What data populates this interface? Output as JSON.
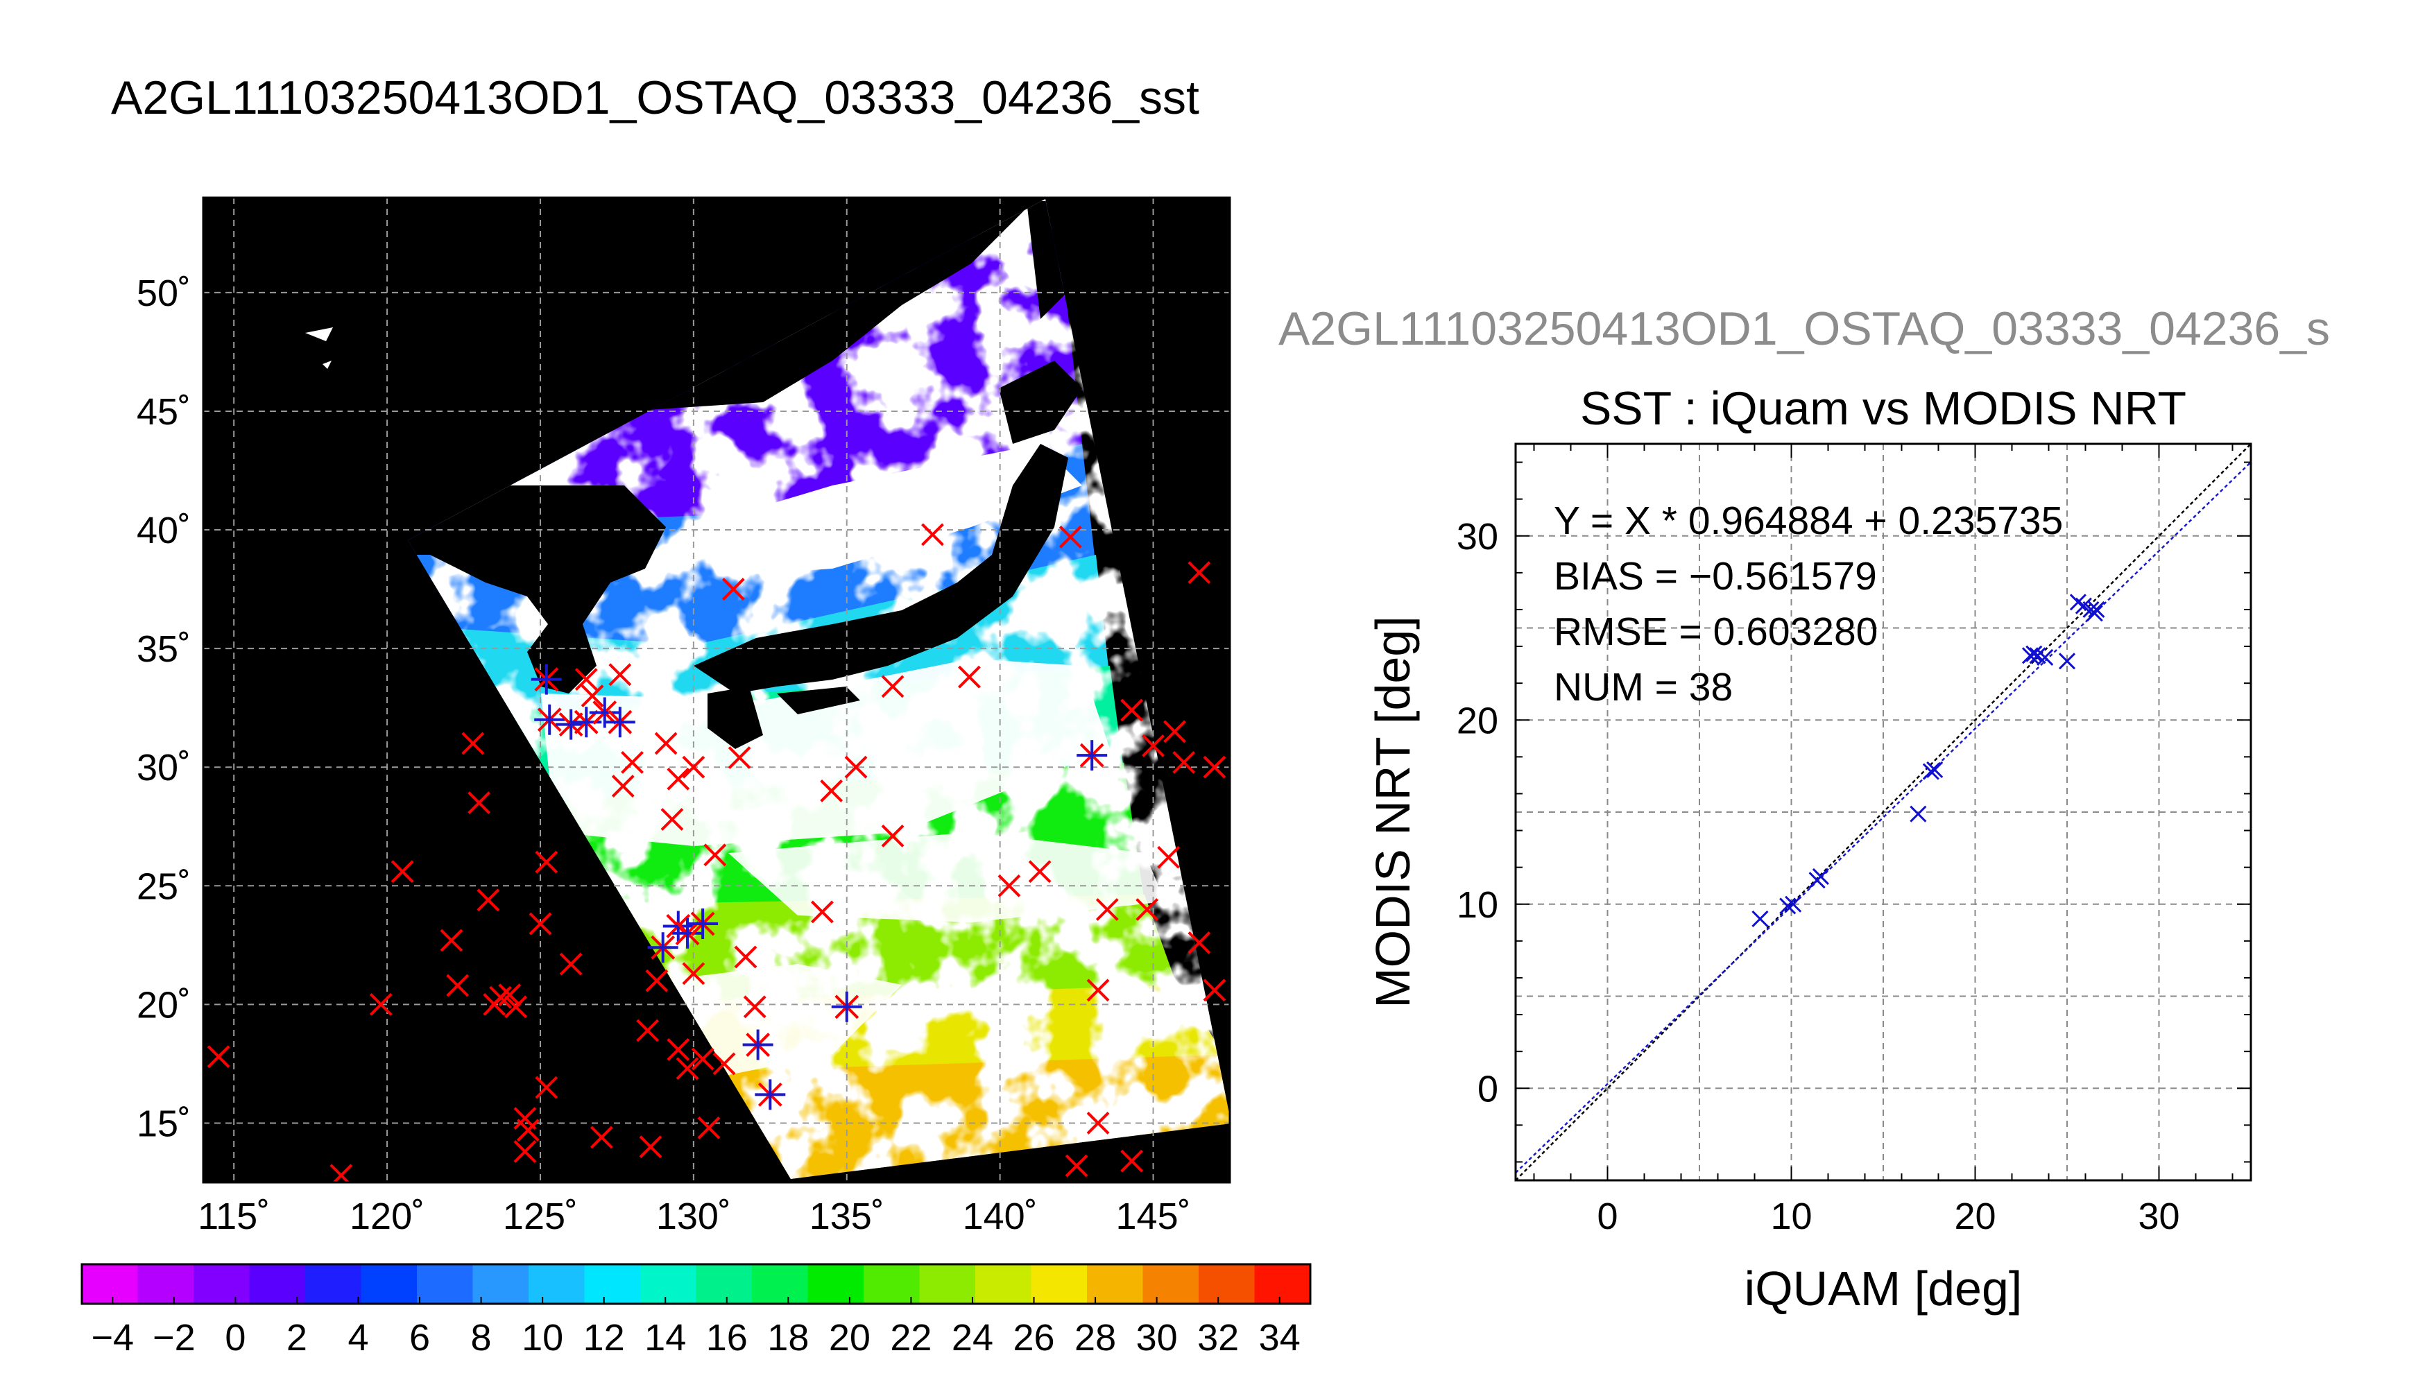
{
  "figure_title": "A2GL11103250413OD1_OSTAQ_03333_04236_sst",
  "chart_data": [
    {
      "type": "map",
      "title": "A2GL11103250413OD1_OSTAQ_03333_04236_sst",
      "lon_range": [
        114,
        147.5
      ],
      "lat_range": [
        12.5,
        54
      ],
      "lon_ticks": [
        115,
        120,
        125,
        130,
        135,
        140,
        145
      ],
      "lat_ticks": [
        15,
        20,
        25,
        30,
        35,
        40,
        45,
        50
      ],
      "lon_tick_labels": [
        "115˚",
        "120˚",
        "125˚",
        "130˚",
        "135˚",
        "140˚",
        "145˚"
      ],
      "lat_tick_labels": [
        "15˚",
        "20˚",
        "25˚",
        "30˚",
        "35˚",
        "40˚",
        "45˚",
        "50˚"
      ],
      "grid": true,
      "colorbar": {
        "min": -5,
        "max": 35,
        "step": 2,
        "tick_values": [
          -4,
          -2,
          0,
          2,
          4,
          6,
          8,
          10,
          12,
          14,
          16,
          18,
          20,
          22,
          24,
          26,
          28,
          30,
          32,
          34
        ],
        "tick_labels": [
          "−4",
          "−2",
          "0",
          "2",
          "4",
          "6",
          "8",
          "10",
          "12",
          "14",
          "16",
          "18",
          "20",
          "22",
          "24",
          "26",
          "28",
          "30",
          "32",
          "34"
        ],
        "colors": [
          "#e600ff",
          "#b400ff",
          "#8200ff",
          "#5a00ff",
          "#1e1eff",
          "#0040ff",
          "#1e6cff",
          "#2898ff",
          "#18c0ff",
          "#00e6ff",
          "#00f5c8",
          "#00f08c",
          "#00f050",
          "#00eb00",
          "#50eb00",
          "#8ceb00",
          "#c8eb00",
          "#f5e600",
          "#f5b400",
          "#f58200",
          "#f55000",
          "#ff1400"
        ]
      },
      "colors": {
        "background": "#000000",
        "cloud": "#ffffff",
        "land": "#000000",
        "match_unmatched": "#ff0000",
        "match_matched": "#1a1acc"
      },
      "points_unmatched": [
        [
          114.5,
          17.8
        ],
        [
          118.5,
          12.8
        ],
        [
          119.8,
          20.0
        ],
        [
          120.5,
          25.6
        ],
        [
          122.1,
          22.7
        ],
        [
          122.3,
          20.8
        ],
        [
          123.0,
          28.5
        ],
        [
          123.3,
          24.4
        ],
        [
          123.5,
          20.0
        ],
        [
          123.7,
          20.3
        ],
        [
          124.0,
          20.4
        ],
        [
          124.2,
          19.9
        ],
        [
          122.8,
          31.0
        ],
        [
          124.5,
          15.2
        ],
        [
          124.6,
          14.7
        ],
        [
          124.5,
          13.8
        ],
        [
          125.2,
          26.0
        ],
        [
          125.0,
          23.4
        ],
        [
          125.2,
          16.5
        ],
        [
          126.0,
          21.7
        ],
        [
          126.5,
          33.7
        ],
        [
          127.0,
          14.4
        ],
        [
          127.7,
          29.2
        ],
        [
          128.0,
          30.2
        ],
        [
          128.6,
          14.0
        ],
        [
          128.5,
          18.9
        ],
        [
          128.8,
          21.0
        ],
        [
          129.1,
          31.0
        ],
        [
          129.3,
          27.8
        ],
        [
          129.5,
          29.5
        ],
        [
          129.5,
          18.1
        ],
        [
          129.8,
          17.3
        ],
        [
          130.0,
          21.3
        ],
        [
          130.3,
          17.7
        ],
        [
          130.5,
          14.8
        ],
        [
          130.7,
          26.3
        ],
        [
          131.3,
          37.5
        ],
        [
          131.5,
          30.4
        ],
        [
          131.7,
          22.0
        ],
        [
          132.0,
          19.9
        ],
        [
          134.2,
          23.9
        ],
        [
          134.5,
          29.0
        ],
        [
          135.3,
          30.0
        ],
        [
          136.5,
          27.1
        ],
        [
          136.5,
          33.4
        ],
        [
          137.8,
          39.8
        ],
        [
          139.0,
          33.8
        ],
        [
          140.3,
          25.0
        ],
        [
          141.3,
          25.6
        ],
        [
          142.3,
          39.7
        ],
        [
          142.5,
          13.2
        ],
        [
          143.2,
          20.6
        ],
        [
          143.2,
          15.0
        ],
        [
          143.5,
          24.0
        ],
        [
          144.3,
          32.4
        ],
        [
          144.3,
          13.4
        ],
        [
          144.8,
          24.0
        ],
        [
          145.0,
          30.9
        ],
        [
          145.5,
          26.2
        ],
        [
          145.7,
          31.5
        ],
        [
          146.0,
          30.2
        ],
        [
          146.5,
          38.2
        ],
        [
          146.5,
          22.6
        ],
        [
          147.0,
          30.0
        ],
        [
          147.0,
          20.6
        ],
        [
          126.7,
          33.0
        ],
        [
          130.0,
          30.0
        ],
        [
          131.0,
          17.5
        ],
        [
          127.6,
          33.9
        ]
      ],
      "points_matched": [
        [
          125.2,
          33.7
        ],
        [
          125.3,
          32.0
        ],
        [
          126.0,
          31.8
        ],
        [
          126.5,
          31.9
        ],
        [
          127.1,
          32.3
        ],
        [
          127.6,
          31.9
        ],
        [
          129.0,
          22.4
        ],
        [
          129.5,
          23.3
        ],
        [
          129.8,
          23.0
        ],
        [
          130.3,
          23.4
        ],
        [
          132.1,
          18.3
        ],
        [
          132.5,
          16.2
        ],
        [
          135.0,
          19.9
        ],
        [
          143.0,
          30.5
        ]
      ]
    },
    {
      "type": "scatter",
      "panel_label": "A2GL11103250413OD1_OSTAQ_03333_04236_s",
      "title": "SST : iQuam vs MODIS NRT",
      "xlabel": "iQUAM [deg]",
      "ylabel": "MODIS NRT [deg]",
      "xlim": [
        -5,
        35
      ],
      "ylim": [
        -5,
        35
      ],
      "xticks": [
        0,
        10,
        20,
        30
      ],
      "yticks": [
        0,
        10,
        20,
        30
      ],
      "xtick_labels": [
        "0",
        "10",
        "20",
        "30"
      ],
      "ytick_labels": [
        "0",
        "10",
        "20",
        "30"
      ],
      "grid": true,
      "annotations": [
        "Y = X * 0.964884 + 0.235735",
        "BIAS = −0.561579",
        "RMSE = 0.603280",
        "NUM = 38"
      ],
      "fit": {
        "slope": 0.964884,
        "intercept": 0.235735,
        "color": "#1a1acc"
      },
      "identity_line": {
        "slope": 1,
        "intercept": 0,
        "color": "#000000"
      },
      "marker_color": "#1010d0",
      "points": [
        [
          8.3,
          9.2
        ],
        [
          9.8,
          9.9
        ],
        [
          10.1,
          10.0
        ],
        [
          11.4,
          11.3
        ],
        [
          11.6,
          11.5
        ],
        [
          16.9,
          14.9
        ],
        [
          17.6,
          17.2
        ],
        [
          17.8,
          17.3
        ],
        [
          23.0,
          23.5
        ],
        [
          23.2,
          23.6
        ],
        [
          23.4,
          23.5
        ],
        [
          23.8,
          23.4
        ],
        [
          25.0,
          23.2
        ],
        [
          25.6,
          26.4
        ],
        [
          25.9,
          26.2
        ],
        [
          26.3,
          26.0
        ],
        [
          26.5,
          25.8
        ],
        [
          26.6,
          26.0
        ]
      ]
    }
  ]
}
